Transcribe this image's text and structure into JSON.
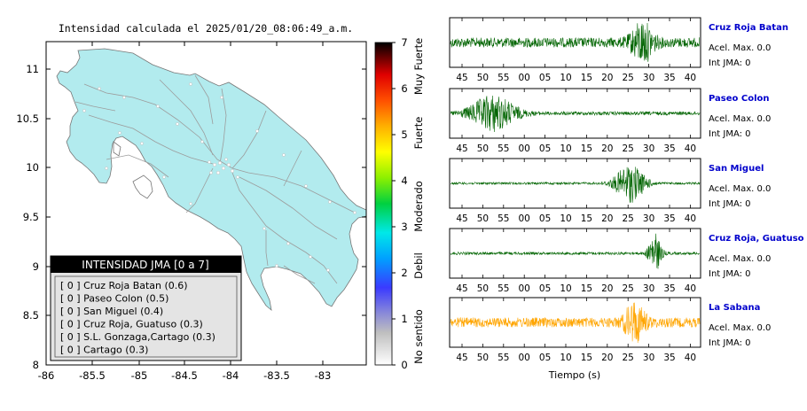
{
  "map": {
    "title": "Intensidad calculada el 2025/01/20_08:06:49_a.m.",
    "x_ticks": [
      "-86",
      "-85.5",
      "-85",
      "-84.5",
      "-84",
      "-83.5",
      "-83"
    ],
    "y_ticks": [
      "11",
      "10.5",
      "10",
      "9.5",
      "9",
      "8.5",
      "8"
    ],
    "legend": {
      "title": "INTENSIDAD JMA [0 a 7]",
      "items": [
        "[ 0 ]  Cruz Roja Batan (0.6)",
        "[ 0 ]  Paseo Colon (0.5)",
        "[ 0 ]  San Miguel (0.4)",
        "[ 0 ]  Cruz Roja, Guatuso (0.3)",
        "[ 0 ]  S.L. Gonzaga,Cartago (0.3)",
        "[ 0 ]  Cartago (0.3)"
      ]
    },
    "colors": {
      "land": "#b2ebee",
      "roads": "#9c9c9c",
      "frame": "#000000"
    }
  },
  "colorbar": {
    "ticks": [
      "0",
      "1",
      "2",
      "3",
      "4",
      "5",
      "6",
      "7"
    ],
    "categories": [
      "No sentido",
      "Debil",
      "Moderado",
      "Fuerte",
      "Muy Fuerte"
    ]
  },
  "chart_data": {
    "type": "line",
    "xlabel": "Tiempo (s)",
    "x_ticks": [
      "45",
      "50",
      "55",
      "00",
      "05",
      "10",
      "15",
      "20",
      "25",
      "30",
      "35",
      "40"
    ],
    "series": [
      {
        "name": "Cruz Roja Batan",
        "accel": "Acel. Max. 0.0",
        "jma": "Int JMA: 0",
        "color": "#006400",
        "amp": 0.22,
        "burst_at": 0.77,
        "burst_amp": 0.85,
        "burst_width": 0.045
      },
      {
        "name": "Paseo Colon",
        "accel": "Acel. Max. 0.0",
        "jma": "Int JMA: 0",
        "color": "#006400",
        "amp": 0.08,
        "burst_at": 0.17,
        "burst_amp": 0.8,
        "burst_width": 0.09
      },
      {
        "name": "San Miguel",
        "accel": "Acel. Max. 0.0",
        "jma": "Int JMA: 0",
        "color": "#006400",
        "amp": 0.05,
        "burst_at": 0.72,
        "burst_amp": 0.85,
        "burst_width": 0.06
      },
      {
        "name": "Cruz Roja, Guatuso",
        "accel": "Acel. Max. 0.0",
        "jma": "Int JMA: 0",
        "color": "#006400",
        "amp": 0.06,
        "burst_at": 0.82,
        "burst_amp": 0.9,
        "burst_width": 0.025
      },
      {
        "name": "La Sabana",
        "accel": "Acel. Max. 0.0",
        "jma": "Int JMA: 0",
        "color": "#ffa500",
        "amp": 0.22,
        "burst_at": 0.74,
        "burst_amp": 0.85,
        "burst_width": 0.04
      }
    ]
  }
}
